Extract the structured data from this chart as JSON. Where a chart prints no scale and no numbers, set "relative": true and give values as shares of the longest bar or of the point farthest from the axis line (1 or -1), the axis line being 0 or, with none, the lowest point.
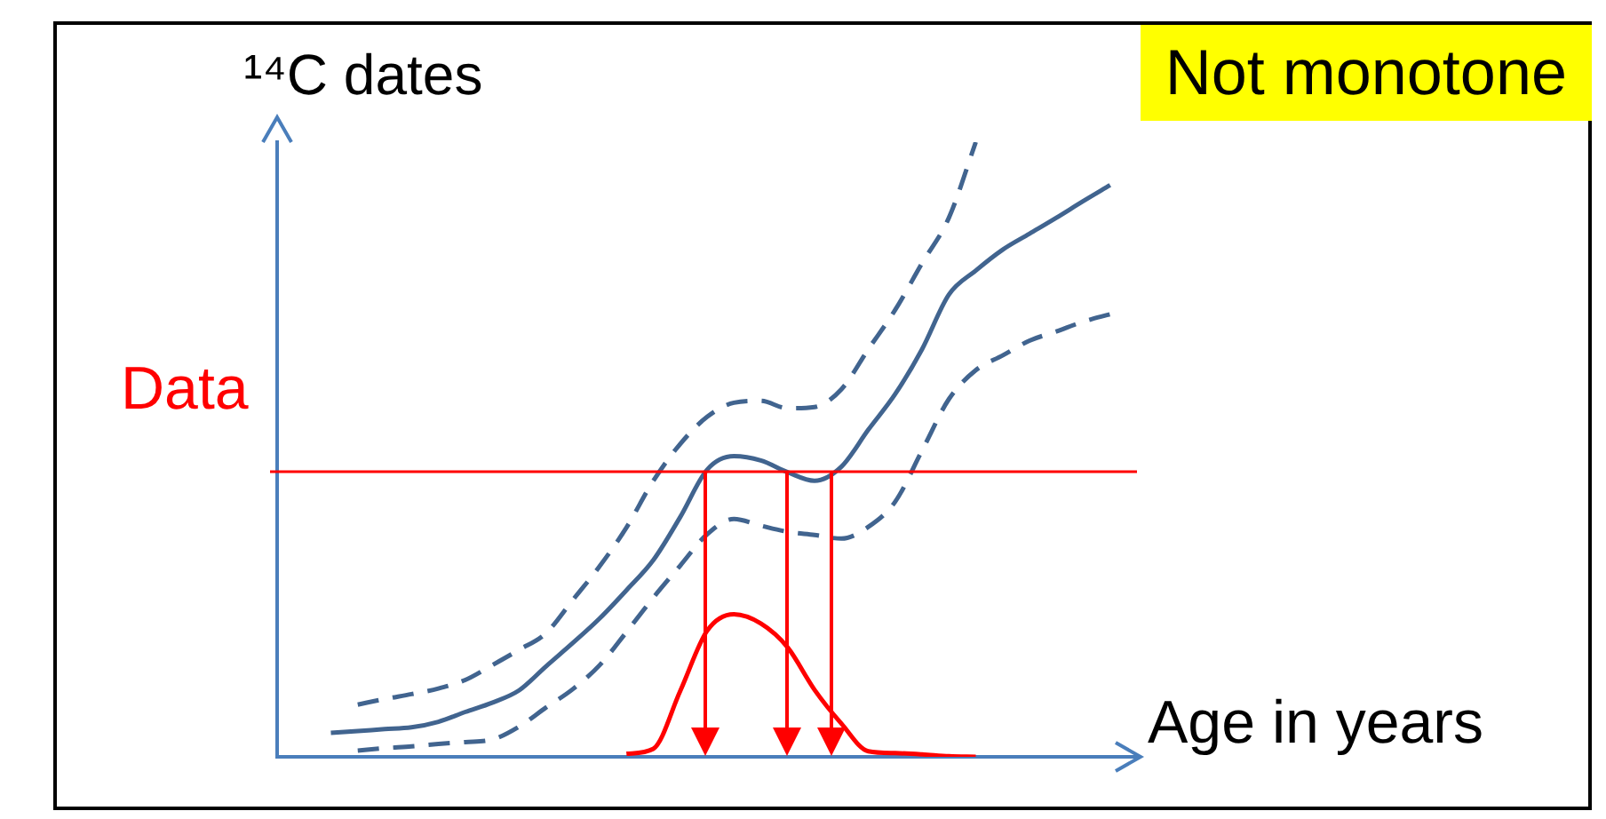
{
  "chart_data": {
    "type": "line",
    "relative": true,
    "ylabel": "¹⁴C dates",
    "xlabel": "Age in years",
    "tick_labels": false,
    "line_style": "solid",
    "categories": [
      null,
      null,
      null,
      null,
      null,
      null,
      null,
      null,
      null,
      null,
      null,
      null,
      null,
      null,
      null,
      null,
      null,
      null,
      null,
      null,
      null,
      null,
      null,
      null,
      null,
      null,
      null,
      null,
      null,
      null,
      null,
      null,
      null
    ],
    "annotations": [
      "Not monotone"
    ],
    "ref_lines": [
      {
        "axis": "y",
        "value": 0.464,
        "label": "Data",
        "color": "#ff0000"
      }
    ],
    "series": [
      {
        "color": "#41648f",
        "values": [
          null,
          null,
          0.039,
          0.042,
          0.045,
          0.048,
          0.057,
          0.073,
          0.088,
          0.108,
          0.147,
          0.185,
          0.225,
          0.271,
          0.32,
          0.39,
          0.467,
          0.489,
          0.482,
          0.463,
          0.449,
          0.472,
          0.532,
          0.59,
          0.663,
          0.752,
          0.791,
          0.825,
          0.851,
          0.877,
          0.904,
          0.93,
          null
        ]
      },
      {
        "color": "#41648f",
        "line_style": "dashed",
        "values": [
          null,
          null,
          null,
          0.085,
          0.094,
          0.102,
          0.111,
          0.125,
          0.149,
          0.174,
          0.201,
          0.255,
          0.31,
          0.373,
          0.449,
          0.509,
          0.553,
          0.576,
          0.579,
          0.567,
          0.569,
          0.598,
          0.663,
          0.727,
          0.803,
          0.877,
          1,
          null,
          null,
          null,
          null,
          null,
          null
        ]
      },
      {
        "color": "#41648f",
        "line_style": "dashed",
        "values": [
          null,
          null,
          null,
          0.01,
          0.014,
          0.017,
          0.021,
          0.024,
          0.028,
          0.049,
          0.08,
          0.11,
          0.149,
          0.203,
          0.259,
          0.311,
          0.362,
          0.387,
          0.376,
          0.366,
          0.361,
          0.355,
          0.374,
          0.415,
          0.498,
          0.582,
          0.629,
          0.653,
          0.677,
          0.692,
          0.708,
          0.72,
          null
        ]
      },
      {
        "color": "#ff0000",
        "values": [
          null,
          null,
          null,
          null,
          null,
          null,
          null,
          null,
          null,
          null,
          null,
          null,
          null,
          0.005,
          0.013,
          0.107,
          0.205,
          0.232,
          0.217,
          0.178,
          0.109,
          0.054,
          0.009,
          0.006,
          0.004,
          0.001,
          0,
          null,
          null,
          null,
          null,
          null,
          null
        ]
      }
    ]
  }
}
